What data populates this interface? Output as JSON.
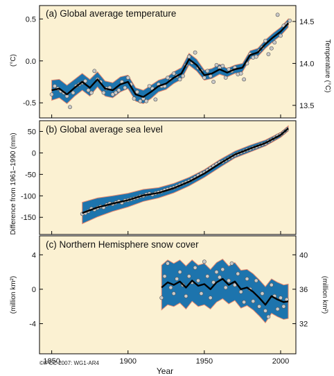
{
  "colors": {
    "panel_bg": "#fbf1d2",
    "uncertainty_band": "#1d74ad",
    "band_edge": "#e8896e",
    "smooth_line": "#000000",
    "annual_points": "#c9c9c9"
  },
  "figure": {
    "xlabel": "Year",
    "credit": "©IPCC 2007: WG1-AR4",
    "x_ticks": [
      "1850",
      "1900",
      "1950",
      "2000"
    ]
  },
  "chart_data": [
    {
      "type": "line",
      "title": "(a) Global average temperature",
      "ylabel_left": "(°C)",
      "ylabel_right": "Temperature (°C)",
      "xlim": [
        1842,
        2010
      ],
      "ylim": [
        -0.68,
        0.66
      ],
      "y_ticks": [
        "0.5",
        "0.0",
        "-0.5"
      ],
      "y_ticks_right": [
        "14.5",
        "14.0",
        "13.5"
      ],
      "series": [
        {
          "kind": "smoothed",
          "x": [
            1850,
            1855,
            1860,
            1865,
            1870,
            1875,
            1880,
            1885,
            1890,
            1895,
            1900,
            1905,
            1910,
            1915,
            1920,
            1925,
            1930,
            1935,
            1940,
            1945,
            1950,
            1955,
            1960,
            1965,
            1970,
            1975,
            1980,
            1985,
            1990,
            1995,
            2000,
            2005
          ],
          "values": [
            -0.35,
            -0.33,
            -0.4,
            -0.32,
            -0.25,
            -0.32,
            -0.22,
            -0.33,
            -0.35,
            -0.28,
            -0.25,
            -0.4,
            -0.43,
            -0.37,
            -0.3,
            -0.27,
            -0.2,
            -0.15,
            0.02,
            -0.05,
            -0.17,
            -0.15,
            -0.1,
            -0.14,
            -0.1,
            -0.08,
            0.07,
            0.1,
            0.2,
            0.28,
            0.35,
            0.45
          ],
          "band_half_width": [
            0.12,
            0.11,
            0.11,
            0.1,
            0.1,
            0.1,
            0.09,
            0.09,
            0.09,
            0.09,
            0.08,
            0.08,
            0.08,
            0.08,
            0.07,
            0.07,
            0.07,
            0.07,
            0.07,
            0.07,
            0.06,
            0.06,
            0.06,
            0.05,
            0.05,
            0.05,
            0.05,
            0.05,
            0.05,
            0.05,
            0.05,
            0.05
          ]
        },
        {
          "kind": "annual",
          "x": [
            1850,
            1852,
            1854,
            1856,
            1858,
            1860,
            1862,
            1864,
            1866,
            1868,
            1870,
            1872,
            1874,
            1876,
            1878,
            1880,
            1882,
            1884,
            1886,
            1888,
            1890,
            1892,
            1894,
            1896,
            1898,
            1900,
            1902,
            1904,
            1906,
            1908,
            1910,
            1912,
            1914,
            1916,
            1918,
            1920,
            1922,
            1924,
            1926,
            1928,
            1930,
            1932,
            1934,
            1936,
            1938,
            1940,
            1942,
            1944,
            1946,
            1948,
            1950,
            1952,
            1954,
            1956,
            1958,
            1960,
            1962,
            1964,
            1966,
            1968,
            1970,
            1972,
            1974,
            1976,
            1978,
            1980,
            1982,
            1984,
            1986,
            1988,
            1990,
            1992,
            1994,
            1996,
            1998,
            2000,
            2002,
            2004,
            2006
          ],
          "values": [
            -0.4,
            -0.3,
            -0.33,
            -0.36,
            -0.38,
            -0.42,
            -0.55,
            -0.38,
            -0.3,
            -0.28,
            -0.26,
            -0.24,
            -0.35,
            -0.38,
            -0.12,
            -0.22,
            -0.25,
            -0.38,
            -0.33,
            -0.32,
            -0.4,
            -0.38,
            -0.35,
            -0.25,
            -0.32,
            -0.2,
            -0.28,
            -0.45,
            -0.37,
            -0.48,
            -0.45,
            -0.48,
            -0.3,
            -0.33,
            -0.46,
            -0.28,
            -0.3,
            -0.3,
            -0.2,
            -0.22,
            -0.15,
            -0.18,
            -0.22,
            -0.18,
            -0.05,
            0.05,
            -0.02,
            0.1,
            -0.08,
            -0.12,
            -0.2,
            -0.12,
            -0.18,
            -0.25,
            -0.05,
            -0.08,
            -0.06,
            -0.2,
            -0.1,
            -0.12,
            -0.08,
            -0.16,
            -0.15,
            -0.22,
            -0.03,
            0.08,
            0.04,
            0.05,
            0.12,
            0.16,
            0.24,
            0.08,
            0.15,
            0.22,
            0.55,
            0.3,
            0.42,
            0.44,
            0.48
          ]
        }
      ]
    },
    {
      "type": "line",
      "title": "(b) Global average sea level",
      "ylabel_left": "Difference from 1961–1990 (mm)",
      "xlim": [
        1842,
        2010
      ],
      "ylim": [
        -190,
        75
      ],
      "y_ticks": [
        "50",
        "0",
        "-50",
        "-100",
        "-150"
      ],
      "series": [
        {
          "kind": "smoothed",
          "x": [
            1870,
            1880,
            1890,
            1900,
            1910,
            1920,
            1930,
            1940,
            1950,
            1960,
            1970,
            1980,
            1990,
            2000,
            2005
          ],
          "values": [
            -140,
            -127,
            -118,
            -110,
            -99,
            -93,
            -82,
            -67,
            -48,
            -25,
            -4,
            10,
            23,
            42,
            57
          ],
          "band_half_width": [
            25,
            22,
            18,
            16,
            14,
            12,
            11,
            10,
            9,
            9,
            8,
            8,
            7,
            6,
            6
          ]
        },
        {
          "kind": "annual",
          "x": [
            1870,
            1872,
            1874,
            1876,
            1878,
            1880,
            1882,
            1884,
            1886,
            1888,
            1890,
            1892,
            1894,
            1896,
            1898,
            1900,
            1902,
            1904,
            1906,
            1908,
            1910,
            1912,
            1914,
            1916,
            1918,
            1920,
            1922,
            1924,
            1926,
            1928,
            1930,
            1932,
            1934,
            1936,
            1938,
            1940,
            1942,
            1944,
            1946,
            1948,
            1950,
            1952,
            1954,
            1956,
            1958,
            1960,
            1962,
            1964,
            1966,
            1968,
            1970,
            1972,
            1974,
            1976,
            1978,
            1980,
            1982,
            1984,
            1986,
            1988,
            1990,
            1992,
            1994,
            1996,
            1998,
            2000,
            2002,
            2004
          ],
          "values": [
            -142,
            -140,
            -136,
            -130,
            -132,
            -128,
            -125,
            -127,
            -121,
            -118,
            -119,
            -116,
            -113,
            -116,
            -111,
            -110,
            -108,
            -106,
            -104,
            -101,
            -100,
            -97,
            -95,
            -97,
            -94,
            -92,
            -90,
            -87,
            -85,
            -83,
            -81,
            -78,
            -75,
            -72,
            -69,
            -66,
            -62,
            -58,
            -53,
            -49,
            -46,
            -41,
            -36,
            -31,
            -27,
            -23,
            -21,
            -17,
            -13,
            -9,
            -5,
            -2,
            1,
            4,
            7,
            9,
            12,
            14,
            17,
            20,
            22,
            27,
            30,
            35,
            40,
            43,
            48,
            54
          ]
        }
      ]
    },
    {
      "type": "line",
      "title": "(c) Northern Hemisphere snow cover",
      "ylabel_left": "(million km²)",
      "ylabel_right": "(million km²)",
      "xlim": [
        1842,
        2010
      ],
      "ylim": [
        -7.5,
        6.2
      ],
      "y_ticks": [
        "4",
        "0",
        "-4"
      ],
      "y_ticks_right": [
        "40",
        "36",
        "32"
      ],
      "series": [
        {
          "kind": "smoothed",
          "x": [
            1922,
            1926,
            1930,
            1934,
            1938,
            1942,
            1946,
            1950,
            1954,
            1958,
            1962,
            1966,
            1970,
            1974,
            1978,
            1982,
            1986,
            1990,
            1994,
            1998,
            2002,
            2005
          ],
          "values": [
            0.2,
            0.8,
            0.5,
            0.9,
            0.2,
            1.0,
            0.4,
            0.6,
            0.0,
            0.8,
            1.2,
            0.5,
            0.9,
            0.0,
            0.2,
            -0.3,
            -1.0,
            -1.8,
            -0.8,
            -1.2,
            -1.5,
            -1.4
          ],
          "band_half_width": [
            2.6,
            2.6,
            2.5,
            2.5,
            2.5,
            2.4,
            2.4,
            2.4,
            2.3,
            2.3,
            2.3,
            2.2,
            2.2,
            2.2,
            2.1,
            2.1,
            2.1,
            2.1,
            2.0,
            2.0,
            2.0,
            2.0
          ]
        },
        {
          "kind": "annual",
          "x": [
            1922,
            1924,
            1926,
            1928,
            1930,
            1932,
            1934,
            1936,
            1938,
            1940,
            1942,
            1944,
            1946,
            1948,
            1950,
            1952,
            1954,
            1956,
            1958,
            1960,
            1962,
            1964,
            1966,
            1968,
            1970,
            1972,
            1974,
            1976,
            1978,
            1980,
            1982,
            1984,
            1986,
            1988,
            1990,
            1992,
            1994,
            1996,
            1998,
            2000,
            2002,
            2004
          ],
          "values": [
            -1.0,
            1.5,
            3.0,
            0.2,
            -0.5,
            1.2,
            2.0,
            0.5,
            -0.8,
            1.5,
            0.8,
            2.5,
            1.0,
            -0.5,
            3.2,
            1.5,
            -1.0,
            0.8,
            2.0,
            1.4,
            2.3,
            0.2,
            1.0,
            3.0,
            0.5,
            1.8,
            -0.3,
            -1.5,
            1.2,
            0.0,
            -1.4,
            1.0,
            -2.0,
            -0.5,
            -2.5,
            -3.2,
            0.5,
            -0.8,
            -2.3,
            -1.0,
            -2.0,
            -1.2
          ]
        }
      ]
    }
  ]
}
